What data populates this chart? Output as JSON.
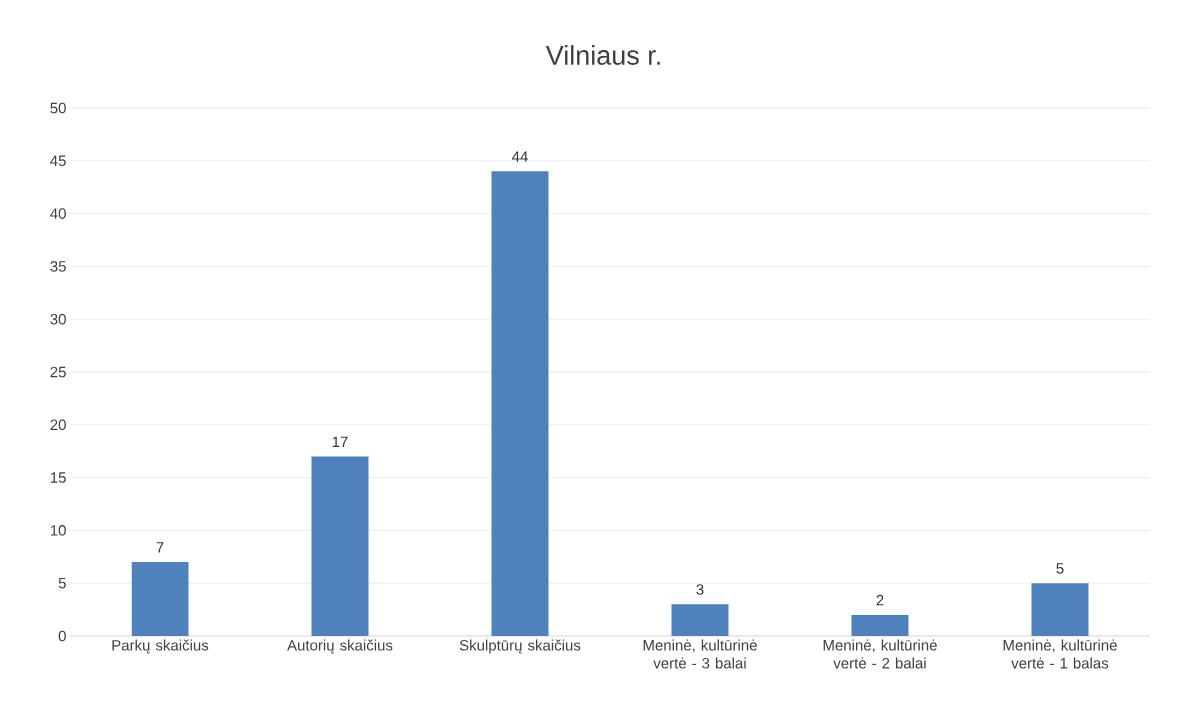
{
  "chart_data": {
    "type": "bar",
    "title": "Vilniaus r.",
    "categories": [
      "Parkų skaičius",
      "Autorių skaičius",
      "Skulptūrų skaičius",
      "Meninė, kultūrinė vertė - 3 balai",
      "Meninė, kultūrinė vertė - 2 balai",
      "Meninė, kultūrinė vertė - 1 balas"
    ],
    "values": [
      7,
      17,
      44,
      3,
      2,
      5
    ],
    "color": "#4f81bd",
    "ylim": [
      0,
      50
    ],
    "yticks": [
      0,
      5,
      10,
      15,
      20,
      25,
      30,
      35,
      40,
      45,
      50
    ],
    "grid": "y",
    "data_labels": true
  }
}
